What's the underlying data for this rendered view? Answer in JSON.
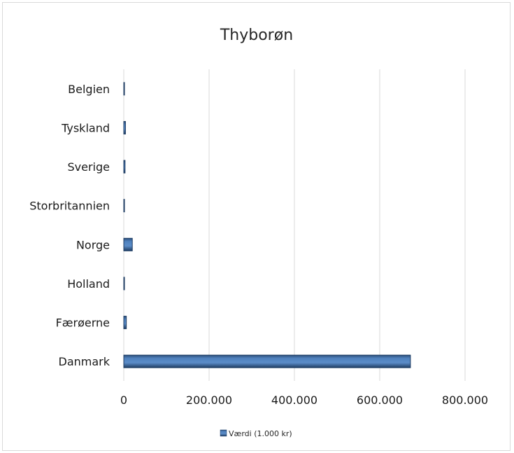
{
  "chart_data": {
    "type": "bar",
    "orientation": "horizontal",
    "title": "Thyborøn",
    "categories": [
      "Belgien",
      "Tyskland",
      "Sverige",
      "Storbritannien",
      "Norge",
      "Holland",
      "Færøerne",
      "Danmark"
    ],
    "series": [
      {
        "name": "Værdi (1.000 kr)",
        "values": [
          400,
          4000,
          3000,
          1500,
          20000,
          300,
          6000,
          672000
        ]
      }
    ],
    "xlim": [
      0,
      800000
    ],
    "x_ticks": [
      "0",
      "200.000",
      "400.000",
      "600.000",
      "800.000"
    ],
    "grid": "vertical",
    "legend": "bottom",
    "colors": {
      "bar": "#4f81bd",
      "bar_dark": "#1f3d63",
      "grid": "#d9d9d9"
    }
  }
}
